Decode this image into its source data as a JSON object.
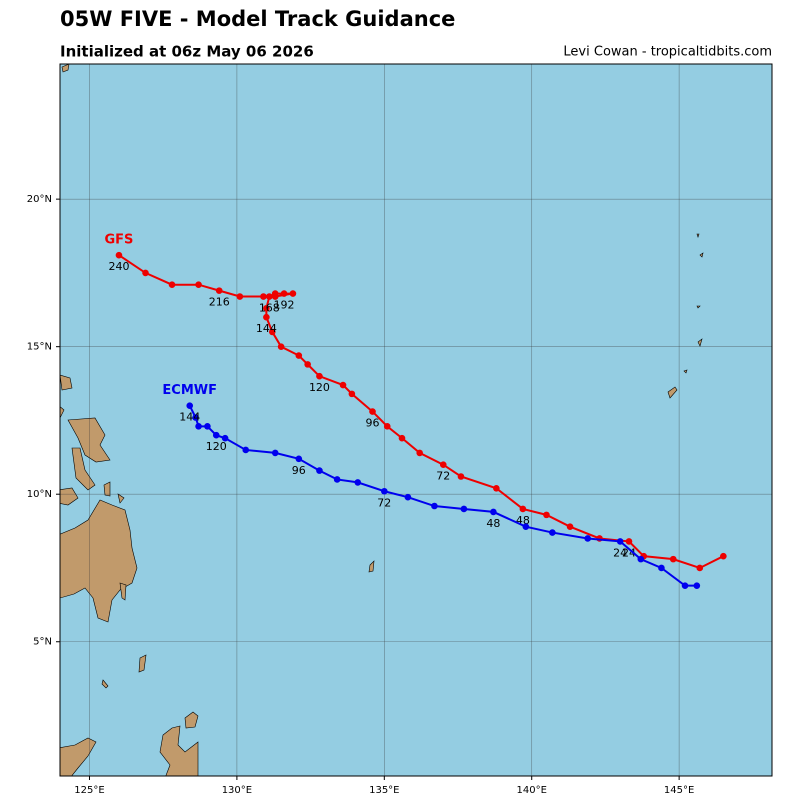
{
  "chart_data": {
    "type": "track",
    "title": "05W FIVE - Model Track Guidance",
    "subtitle": "Initialized at 06z May 06 2026",
    "credit": "Levi Cowan - tropicaltidbits.com",
    "xlim": [
      124,
      148.15
    ],
    "ylim": [
      0.45,
      24.58
    ],
    "xticks": [
      {
        "value": 125,
        "label": "125°E"
      },
      {
        "value": 130,
        "label": "130°E"
      },
      {
        "value": 135,
        "label": "135°E"
      },
      {
        "value": 140,
        "label": "140°E"
      },
      {
        "value": 145,
        "label": "145°E"
      }
    ],
    "yticks": [
      {
        "value": 5,
        "label": "5°N"
      },
      {
        "value": 10,
        "label": "10°N"
      },
      {
        "value": 15,
        "label": "15°N"
      },
      {
        "value": 20,
        "label": "20°N"
      }
    ],
    "grid": true,
    "series": [
      {
        "name": "GFS",
        "color": "#ee0000",
        "x": [
          146.5,
          145.7,
          144.8,
          143.8,
          143.3,
          142.3,
          141.3,
          140.5,
          139.7,
          138.8,
          137.6,
          137.0,
          136.2,
          135.6,
          135.1,
          134.6,
          133.9,
          133.6,
          132.8,
          132.4,
          132.1,
          131.5,
          131.2,
          131.0,
          131.0,
          131.1,
          131.3,
          131.6,
          131.9,
          131.3,
          130.9,
          130.1,
          129.4,
          128.7,
          127.8,
          126.9,
          126.0
        ],
        "values": [
          7.9,
          7.5,
          7.8,
          7.9,
          8.4,
          8.5,
          8.9,
          9.3,
          9.5,
          10.2,
          10.6,
          11.0,
          11.4,
          11.9,
          12.3,
          12.8,
          13.4,
          13.7,
          14.0,
          14.4,
          14.7,
          15.0,
          15.5,
          16.0,
          16.3,
          16.7,
          16.8,
          16.8,
          16.8,
          16.7,
          16.7,
          16.7,
          16.9,
          17.1,
          17.1,
          17.5,
          18.1
        ],
        "hours": [
          null,
          null,
          null,
          null,
          24,
          null,
          null,
          null,
          48,
          null,
          null,
          72,
          null,
          null,
          null,
          96,
          null,
          null,
          120,
          null,
          null,
          null,
          null,
          144,
          null,
          168,
          null,
          192,
          null,
          null,
          null,
          null,
          216,
          null,
          null,
          null,
          240
        ]
      },
      {
        "name": "ECMWF",
        "color": "#0000ee",
        "x": [
          145.6,
          145.2,
          144.4,
          143.7,
          143.0,
          141.9,
          140.7,
          139.8,
          138.7,
          137.7,
          136.7,
          135.8,
          135.0,
          134.1,
          133.4,
          132.8,
          132.1,
          131.3,
          130.3,
          129.6,
          129.3,
          129.0,
          128.7,
          128.6,
          128.4
        ],
        "values": [
          6.9,
          6.9,
          7.5,
          7.8,
          8.4,
          8.5,
          8.7,
          8.9,
          9.4,
          9.5,
          9.6,
          9.9,
          10.1,
          10.4,
          10.5,
          10.8,
          11.2,
          11.4,
          11.5,
          11.9,
          12.0,
          12.3,
          12.3,
          12.6,
          13.0
        ],
        "hours": [
          null,
          null,
          null,
          null,
          24,
          null,
          null,
          null,
          48,
          null,
          null,
          null,
          72,
          null,
          null,
          null,
          96,
          null,
          null,
          null,
          120,
          null,
          null,
          null,
          144
        ]
      }
    ]
  }
}
